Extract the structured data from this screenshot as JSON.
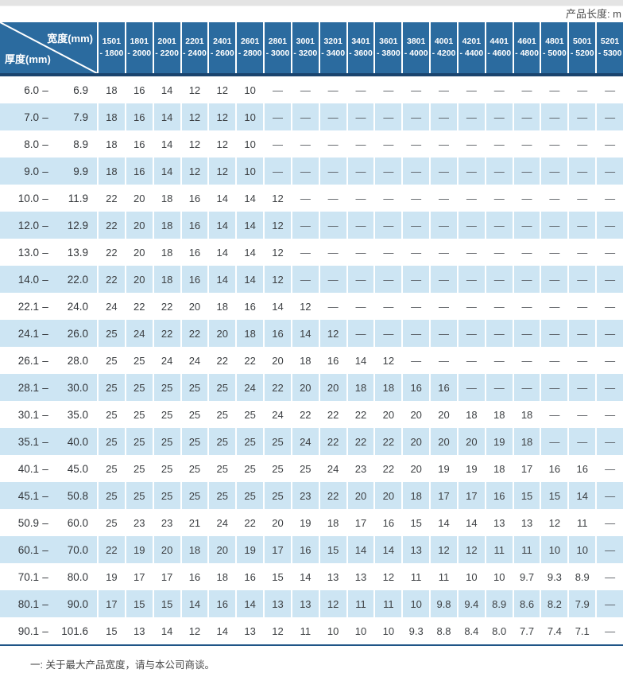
{
  "top": {
    "length_label": "产品长度: m"
  },
  "table": {
    "corner": {
      "width_label": "宽度(mm)",
      "thickness_label": "厚度(mm)"
    },
    "columns": [
      {
        "line1": "1501",
        "line2": "- 1800"
      },
      {
        "line1": "1801",
        "line2": "- 2000"
      },
      {
        "line1": "2001",
        "line2": "- 2200"
      },
      {
        "line1": "2201",
        "line2": "- 2400"
      },
      {
        "line1": "2401",
        "line2": "- 2600"
      },
      {
        "line1": "2601",
        "line2": "- 2800"
      },
      {
        "line1": "2801",
        "line2": "- 3000"
      },
      {
        "line1": "3001",
        "line2": "- 3200"
      },
      {
        "line1": "3201",
        "line2": "- 3400"
      },
      {
        "line1": "3401",
        "line2": "- 3600"
      },
      {
        "line1": "3601",
        "line2": "- 3800"
      },
      {
        "line1": "3801",
        "line2": "- 4000"
      },
      {
        "line1": "4001",
        "line2": "- 4200"
      },
      {
        "line1": "4201",
        "line2": "- 4400"
      },
      {
        "line1": "4401",
        "line2": "- 4600"
      },
      {
        "line1": "4601",
        "line2": "- 4800"
      },
      {
        "line1": "4801",
        "line2": "- 5000"
      },
      {
        "line1": "5001",
        "line2": "- 5200"
      },
      {
        "line1": "5201",
        "line2": "- 5300"
      }
    ],
    "rows": [
      {
        "from": "6.0",
        "to": "6.9",
        "values": [
          "18",
          "16",
          "14",
          "12",
          "12",
          "10",
          "—",
          "—",
          "—",
          "—",
          "—",
          "—",
          "—",
          "—",
          "—",
          "—",
          "—",
          "—",
          "—"
        ]
      },
      {
        "from": "7.0",
        "to": "7.9",
        "values": [
          "18",
          "16",
          "14",
          "12",
          "12",
          "10",
          "—",
          "—",
          "—",
          "—",
          "—",
          "—",
          "—",
          "—",
          "—",
          "—",
          "—",
          "—",
          "—"
        ]
      },
      {
        "from": "8.0",
        "to": "8.9",
        "values": [
          "18",
          "16",
          "14",
          "12",
          "12",
          "10",
          "—",
          "—",
          "—",
          "—",
          "—",
          "—",
          "—",
          "—",
          "—",
          "—",
          "—",
          "—",
          "—"
        ]
      },
      {
        "from": "9.0",
        "to": "9.9",
        "values": [
          "18",
          "16",
          "14",
          "12",
          "12",
          "10",
          "—",
          "—",
          "—",
          "—",
          "—",
          "—",
          "—",
          "—",
          "—",
          "—",
          "—",
          "—",
          "—"
        ]
      },
      {
        "from": "10.0",
        "to": "11.9",
        "values": [
          "22",
          "20",
          "18",
          "16",
          "14",
          "14",
          "12",
          "—",
          "—",
          "—",
          "—",
          "—",
          "—",
          "—",
          "—",
          "—",
          "—",
          "—",
          "—"
        ]
      },
      {
        "from": "12.0",
        "to": "12.9",
        "values": [
          "22",
          "20",
          "18",
          "16",
          "14",
          "14",
          "12",
          "—",
          "—",
          "—",
          "—",
          "—",
          "—",
          "—",
          "—",
          "—",
          "—",
          "—",
          "—"
        ]
      },
      {
        "from": "13.0",
        "to": "13.9",
        "values": [
          "22",
          "20",
          "18",
          "16",
          "14",
          "14",
          "12",
          "—",
          "—",
          "—",
          "—",
          "—",
          "—",
          "—",
          "—",
          "—",
          "—",
          "—",
          "—"
        ]
      },
      {
        "from": "14.0",
        "to": "22.0",
        "values": [
          "22",
          "20",
          "18",
          "16",
          "14",
          "14",
          "12",
          "—",
          "—",
          "—",
          "—",
          "—",
          "—",
          "—",
          "—",
          "—",
          "—",
          "—",
          "—"
        ]
      },
      {
        "from": "22.1",
        "to": "24.0",
        "values": [
          "24",
          "22",
          "22",
          "20",
          "18",
          "16",
          "14",
          "12",
          "—",
          "—",
          "—",
          "—",
          "—",
          "—",
          "—",
          "—",
          "—",
          "—",
          "—"
        ]
      },
      {
        "from": "24.1",
        "to": "26.0",
        "values": [
          "25",
          "24",
          "22",
          "22",
          "20",
          "18",
          "16",
          "14",
          "12",
          "—",
          "—",
          "—",
          "—",
          "—",
          "—",
          "—",
          "—",
          "—",
          "—"
        ]
      },
      {
        "from": "26.1",
        "to": "28.0",
        "values": [
          "25",
          "25",
          "24",
          "24",
          "22",
          "22",
          "20",
          "18",
          "16",
          "14",
          "12",
          "—",
          "—",
          "—",
          "—",
          "—",
          "—",
          "—",
          "—"
        ]
      },
      {
        "from": "28.1",
        "to": "30.0",
        "values": [
          "25",
          "25",
          "25",
          "25",
          "25",
          "24",
          "22",
          "20",
          "20",
          "18",
          "18",
          "16",
          "16",
          "—",
          "—",
          "—",
          "—",
          "—",
          "—"
        ]
      },
      {
        "from": "30.1",
        "to": "35.0",
        "values": [
          "25",
          "25",
          "25",
          "25",
          "25",
          "25",
          "24",
          "22",
          "22",
          "22",
          "20",
          "20",
          "20",
          "18",
          "18",
          "18",
          "—",
          "—",
          "—"
        ]
      },
      {
        "from": "35.1",
        "to": "40.0",
        "values": [
          "25",
          "25",
          "25",
          "25",
          "25",
          "25",
          "25",
          "24",
          "22",
          "22",
          "22",
          "20",
          "20",
          "20",
          "19",
          "18",
          "—",
          "—",
          "—"
        ]
      },
      {
        "from": "40.1",
        "to": "45.0",
        "values": [
          "25",
          "25",
          "25",
          "25",
          "25",
          "25",
          "25",
          "25",
          "24",
          "23",
          "22",
          "20",
          "19",
          "19",
          "18",
          "17",
          "16",
          "16",
          "—"
        ]
      },
      {
        "from": "45.1",
        "to": "50.8",
        "values": [
          "25",
          "25",
          "25",
          "25",
          "25",
          "25",
          "25",
          "23",
          "22",
          "20",
          "20",
          "18",
          "17",
          "17",
          "16",
          "15",
          "15",
          "14",
          "—"
        ]
      },
      {
        "from": "50.9",
        "to": "60.0",
        "values": [
          "25",
          "23",
          "23",
          "21",
          "24",
          "22",
          "20",
          "19",
          "18",
          "17",
          "16",
          "15",
          "14",
          "14",
          "13",
          "13",
          "12",
          "11",
          "—"
        ]
      },
      {
        "from": "60.1",
        "to": "70.0",
        "values": [
          "22",
          "19",
          "20",
          "18",
          "20",
          "19",
          "17",
          "16",
          "15",
          "14",
          "14",
          "13",
          "12",
          "12",
          "11",
          "11",
          "10",
          "10",
          "—"
        ]
      },
      {
        "from": "70.1",
        "to": "80.0",
        "values": [
          "19",
          "17",
          "17",
          "16",
          "18",
          "16",
          "15",
          "14",
          "13",
          "13",
          "12",
          "11",
          "11",
          "10",
          "10",
          "9.7",
          "9.3",
          "8.9",
          "—"
        ]
      },
      {
        "from": "80.1",
        "to": "90.0",
        "values": [
          "17",
          "15",
          "15",
          "14",
          "16",
          "14",
          "13",
          "13",
          "12",
          "11",
          "11",
          "10",
          "9.8",
          "9.4",
          "8.9",
          "8.6",
          "8.2",
          "7.9",
          "—"
        ]
      },
      {
        "from": "90.1",
        "to": "101.6",
        "values": [
          "15",
          "13",
          "14",
          "12",
          "14",
          "13",
          "12",
          "11",
          "10",
          "10",
          "10",
          "9.3",
          "8.8",
          "8.4",
          "8.0",
          "7.7",
          "7.4",
          "7.1",
          "—"
        ]
      }
    ],
    "range_separator": "–"
  },
  "footer": {
    "note": "一: 关于最大产品宽度，请与本公司商谈。"
  },
  "colors": {
    "header_blue": "#2b6b9f",
    "header_underline": "#1a446e",
    "bottom_line": "#1f5587",
    "row_alt_blue": "#cde5f3",
    "top_bar_gray": "#e4e4e4"
  }
}
